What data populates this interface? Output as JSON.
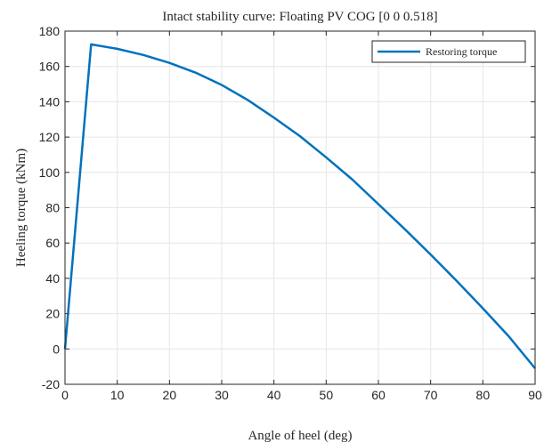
{
  "chart_data": {
    "type": "line",
    "title": "Intact stability curve: Floating PV COG [0 0 0.518]",
    "xlabel": "Angle of heel (deg)",
    "ylabel": "Heeling torque (kNm)",
    "xlim": [
      0,
      90
    ],
    "ylim": [
      -20,
      180
    ],
    "xticks": [
      0,
      10,
      20,
      30,
      40,
      50,
      60,
      70,
      80,
      90
    ],
    "yticks": [
      -20,
      0,
      20,
      40,
      60,
      80,
      100,
      120,
      140,
      160,
      180
    ],
    "grid": true,
    "legend_position": "top-right",
    "series": [
      {
        "name": "Restoring torque",
        "color": "#0072BD",
        "x": [
          0,
          5,
          10,
          15,
          20,
          25,
          30,
          35,
          40,
          45,
          50,
          55,
          60,
          65,
          70,
          75,
          80,
          85,
          90
        ],
        "y": [
          0,
          172.5,
          170,
          166.5,
          162,
          156.5,
          149.5,
          141,
          131,
          120.5,
          108.5,
          96,
          82,
          68,
          53.5,
          38.5,
          23,
          7,
          -11
        ]
      }
    ]
  }
}
